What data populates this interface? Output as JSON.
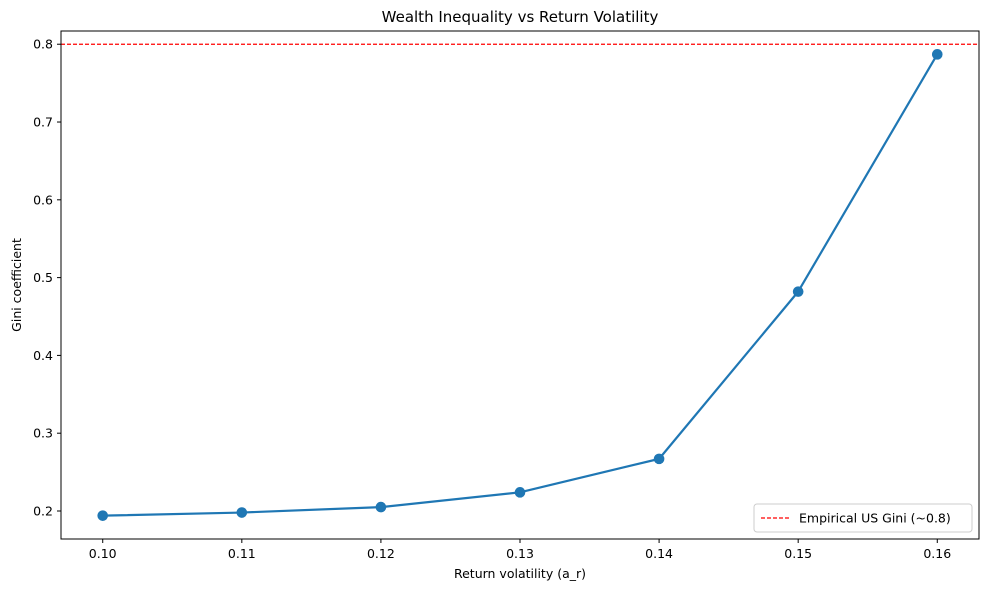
{
  "chart_data": {
    "type": "line",
    "title": "Wealth Inequality vs Return Volatility",
    "xlabel": "Return volatility (a_r)",
    "ylabel": "Gini coefficient",
    "x": [
      0.1,
      0.11,
      0.12,
      0.13,
      0.14,
      0.15,
      0.16
    ],
    "x_ticks": [
      "0.10",
      "0.11",
      "0.12",
      "0.13",
      "0.14",
      "0.15",
      "0.16"
    ],
    "y_ticks": [
      0.2,
      0.3,
      0.4,
      0.5,
      0.6,
      0.7,
      0.8
    ],
    "y_tick_labels": [
      "0.2",
      "0.3",
      "0.4",
      "0.5",
      "0.6",
      "0.7",
      "0.8"
    ],
    "xlim": [
      0.097,
      0.163
    ],
    "ylim": [
      0.164,
      0.817
    ],
    "series": [
      {
        "values": [
          0.194,
          0.198,
          0.205,
          0.224,
          0.267,
          0.482,
          0.787
        ],
        "color": "#1f77b4",
        "marker": "circle"
      }
    ],
    "reference_line": {
      "y": 0.8,
      "label": "Empirical US Gini (~0.8)",
      "color": "#ff0000",
      "style": "dashed"
    },
    "legend": {
      "position": "lower-right",
      "entries": [
        "Empirical US Gini (~0.8)"
      ]
    },
    "grid": false
  }
}
